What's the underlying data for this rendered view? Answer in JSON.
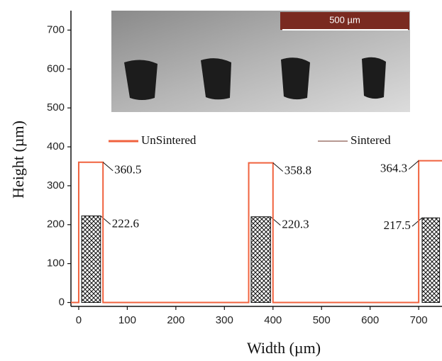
{
  "chart_data": {
    "type": "profile",
    "x_label": "Width (µm)",
    "y_label": "Height (µm)",
    "xlim": [
      -16,
      748
    ],
    "ylim": [
      -10,
      750
    ],
    "xticks": [
      0,
      100,
      200,
      300,
      400,
      500,
      600,
      700
    ],
    "yticks": [
      0,
      100,
      200,
      300,
      400,
      500,
      600,
      700
    ],
    "series": [
      {
        "name": "UnSintered",
        "color": "#f0623e",
        "kind": "line",
        "x": [
          -16,
          0,
          0,
          50,
          50,
          350,
          350,
          400,
          400,
          700,
          700,
          748
        ],
        "y": [
          0,
          0,
          360.5,
          360.5,
          0,
          0,
          358.8,
          358.8,
          0,
          0,
          364.3,
          364.3
        ]
      },
      {
        "name": "Sintered",
        "color": "#8a5a50",
        "kind": "hatched-bar",
        "x_start": [
          6,
          355,
          707
        ],
        "x_end": [
          45,
          395,
          743
        ],
        "values": [
          222.6,
          220.3,
          217.5
        ]
      }
    ],
    "inset": {
      "scale_label": "500 µm"
    }
  }
}
